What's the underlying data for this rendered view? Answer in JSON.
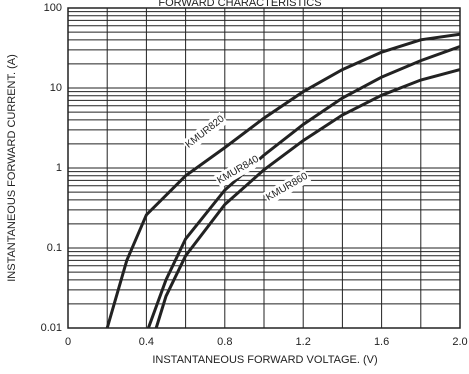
{
  "chart_data": {
    "type": "line",
    "title": "FORWARD CHARACTERISTICS",
    "xlabel": "INSTANTANEOUS FORWARD VOLTAGE. (V)",
    "ylabel": "INSTANTANEOUS FORWARD CURRENT. (A)",
    "xlim": [
      0,
      2
    ],
    "ylim": [
      0.01,
      100
    ],
    "log_y": true,
    "grid": true,
    "xticks": [
      0,
      0.4,
      0.8,
      1.2,
      1.6,
      {
        "value": 2,
        "label": "2.0"
      }
    ],
    "x_minor_ticks": [
      0.2,
      0.6,
      1.0,
      1.4,
      1.8
    ],
    "yticks": [
      0.01,
      0.1,
      1,
      10,
      100
    ],
    "y_minor_ticks": [
      0.02,
      0.03,
      0.04,
      0.05,
      0.06,
      0.07,
      0.08,
      0.09,
      0.2,
      0.3,
      0.4,
      0.5,
      0.6,
      0.7,
      0.8,
      0.9,
      2,
      3,
      4,
      5,
      6,
      7,
      8,
      9,
      20,
      30,
      40,
      50,
      60,
      70,
      80,
      90
    ],
    "series": [
      {
        "name": "KMUR820",
        "color": "#222222",
        "x": [
          0.2,
          0.3,
          0.4,
          0.6,
          0.8,
          1.0,
          1.2,
          1.4,
          1.6,
          1.8,
          2.0
        ],
        "values": [
          0.01,
          0.07,
          0.26,
          0.8,
          1.8,
          4.2,
          9,
          17,
          28,
          40,
          47
        ]
      },
      {
        "name": "KMUR840",
        "color": "#222222",
        "x": [
          0.41,
          0.5,
          0.6,
          0.8,
          1.0,
          1.2,
          1.4,
          1.6,
          1.8,
          2.0
        ],
        "values": [
          0.01,
          0.04,
          0.13,
          0.53,
          1.45,
          3.5,
          7.5,
          13.7,
          22,
          33
        ]
      },
      {
        "name": "KMUR860",
        "color": "#222222",
        "x": [
          0.45,
          0.5,
          0.6,
          0.8,
          1.0,
          1.2,
          1.4,
          1.6,
          1.8,
          2.0
        ],
        "values": [
          0.01,
          0.025,
          0.08,
          0.35,
          0.95,
          2.2,
          4.6,
          8.1,
          12.6,
          17
        ]
      }
    ]
  }
}
